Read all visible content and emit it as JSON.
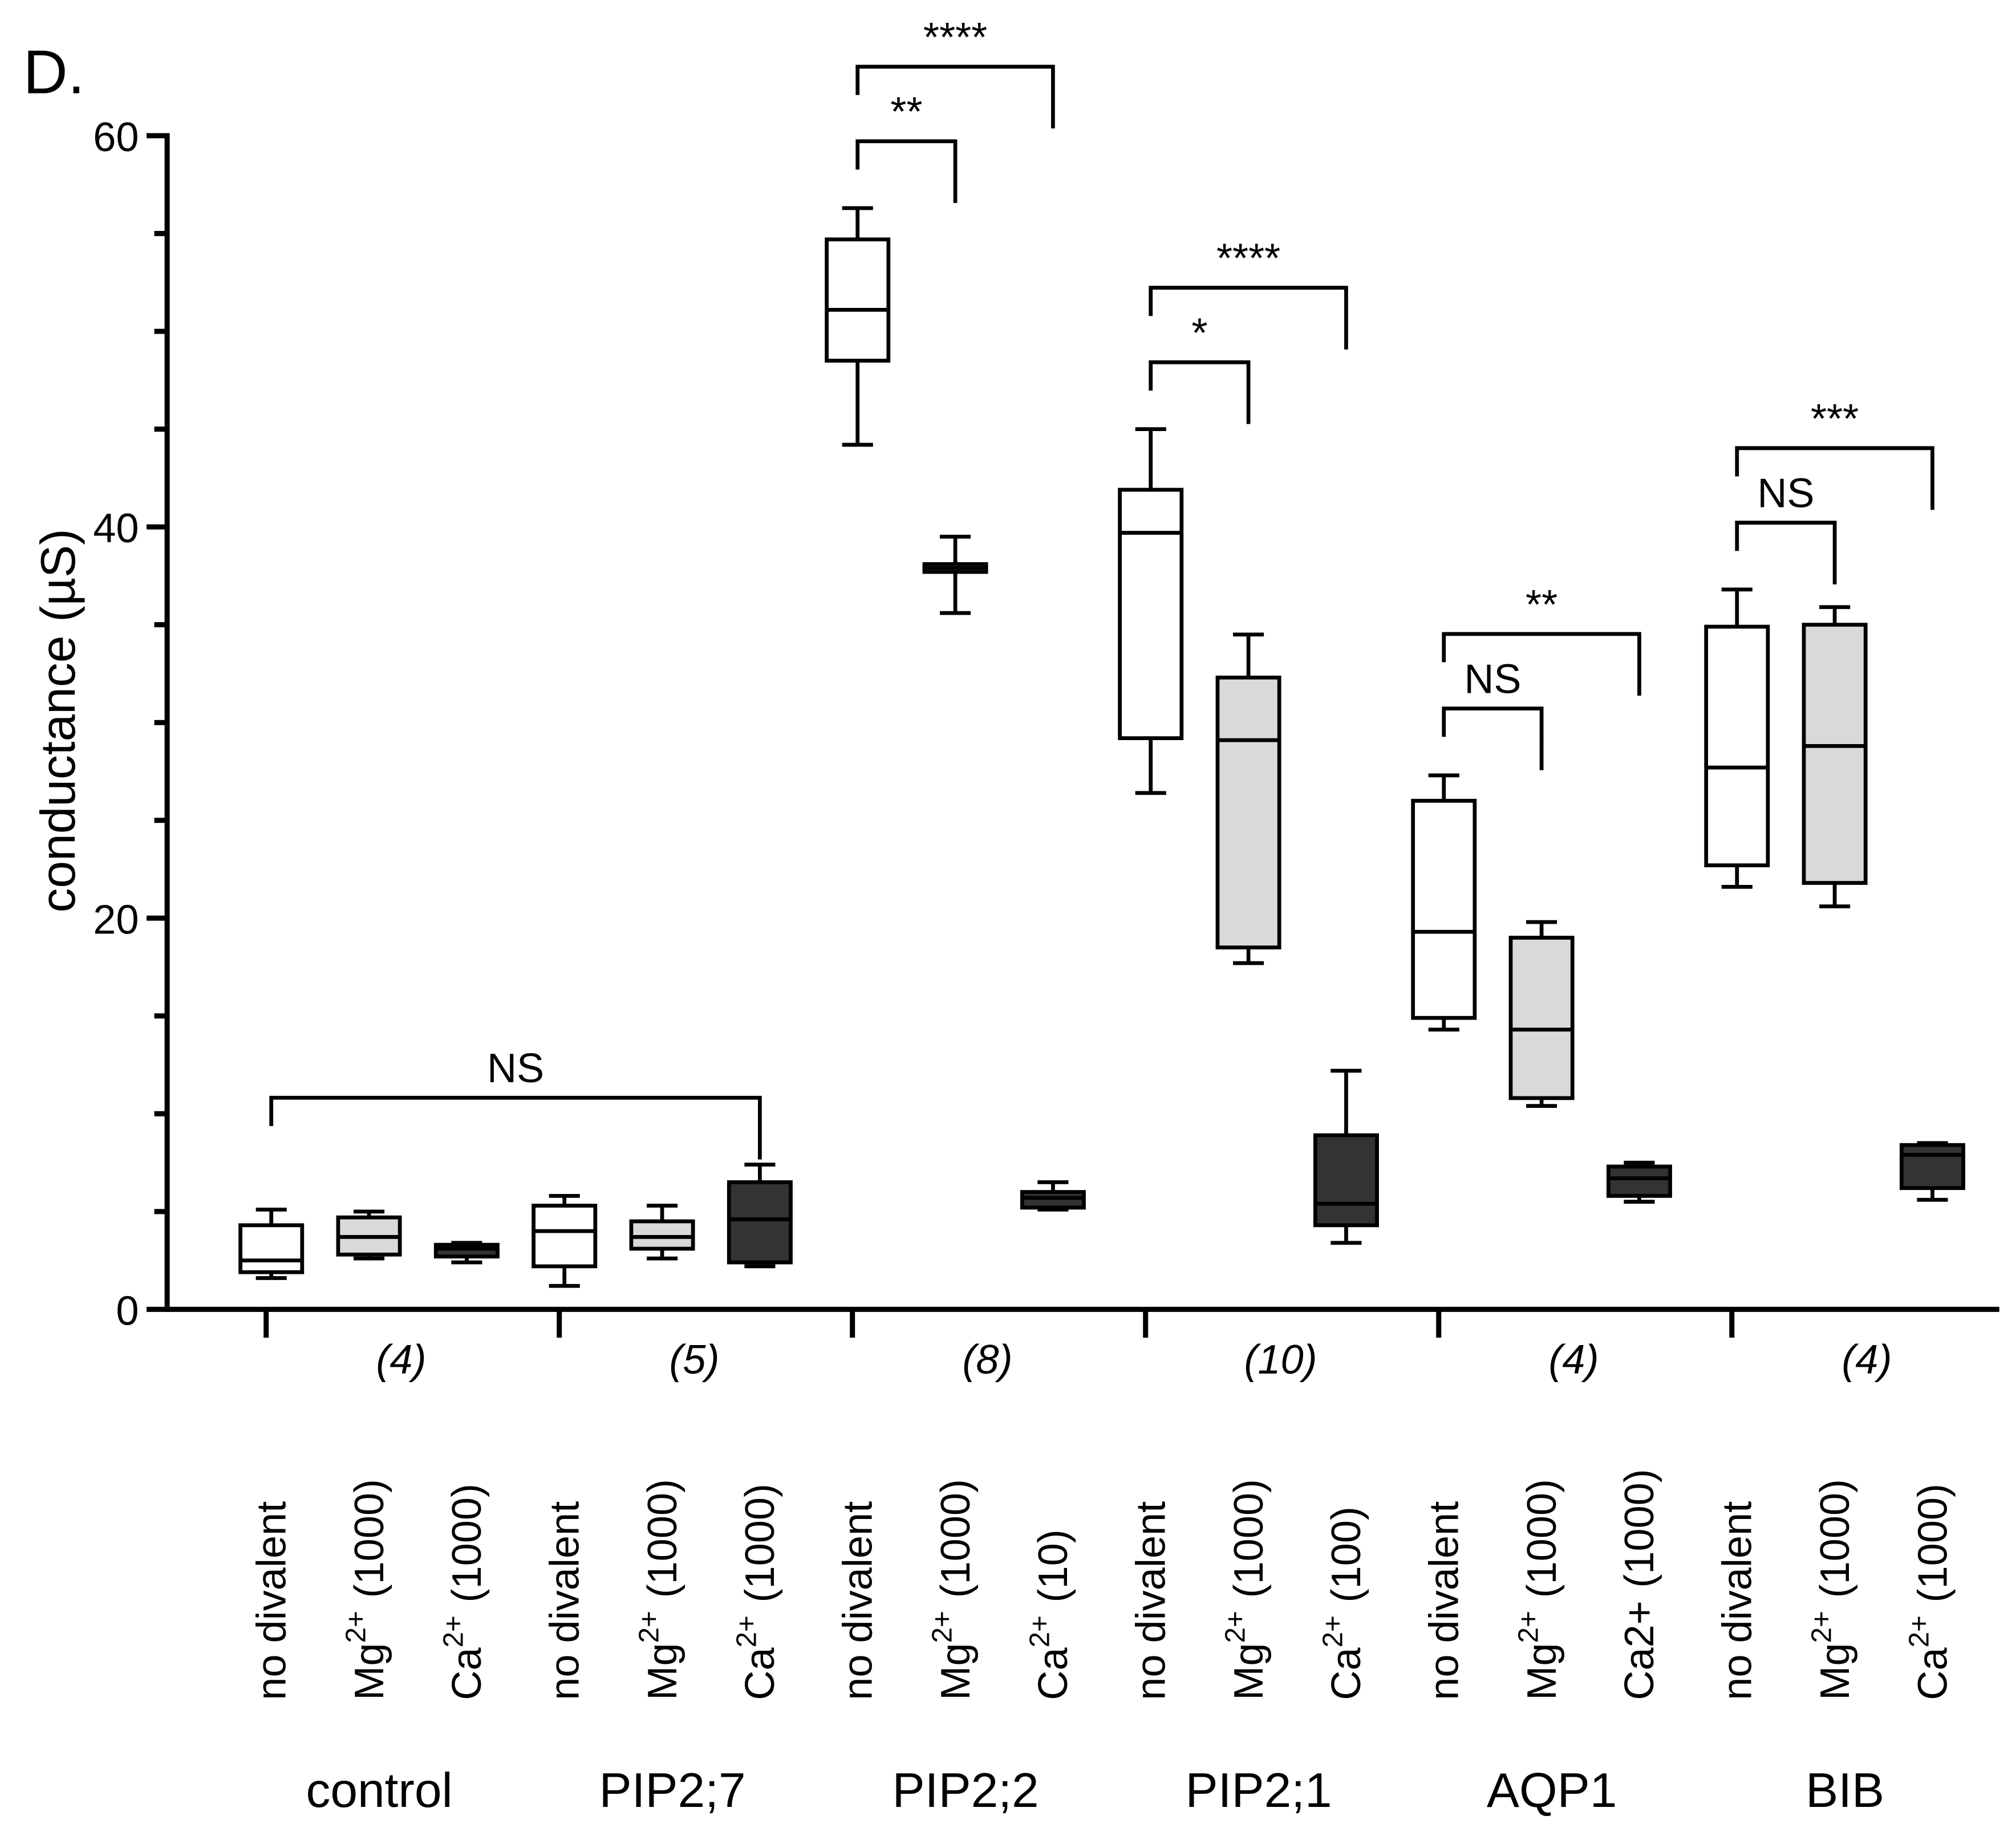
{
  "panel": "D.",
  "chart_data": {
    "type": "box",
    "ylabel": "conductance (µS)",
    "ylim": [
      0,
      60
    ],
    "yticks": [
      0,
      20,
      40,
      60
    ],
    "yminorticks": [
      5,
      10,
      15,
      25,
      30,
      35,
      45,
      50,
      55
    ],
    "box_colors": [
      "#ffffff",
      "#d9d9d9",
      "#333333"
    ],
    "groups": [
      {
        "name": "control",
        "n": "(4)",
        "boxes": [
          {
            "label": "no divalent",
            "min": 1.6,
            "q1": 1.9,
            "median": 2.5,
            "q3": 4.3,
            "max": 5.1
          },
          {
            "label": {
              "ion": "Mg",
              "charge": "2+",
              "conc": "(1000)"
            },
            "min": 2.6,
            "q1": 2.8,
            "median": 3.7,
            "q3": 4.7,
            "max": 5.0
          },
          {
            "label": {
              "ion": "Ca",
              "charge": "2+",
              "conc": "(1000)"
            },
            "min": 2.4,
            "q1": 2.7,
            "median": 3.1,
            "q3": 3.3,
            "max": 3.4
          }
        ]
      },
      {
        "name": "PIP2;7",
        "n": "(5)",
        "boxes": [
          {
            "label": "no divalent",
            "min": 1.2,
            "q1": 2.2,
            "median": 4.0,
            "q3": 5.3,
            "max": 5.8
          },
          {
            "label": {
              "ion": "Mg",
              "charge": "2+",
              "conc": "(1000)"
            },
            "min": 2.6,
            "q1": 3.1,
            "median": 3.7,
            "q3": 4.5,
            "max": 5.3
          },
          {
            "label": {
              "ion": "Ca",
              "charge": "2+",
              "conc": "(1000)"
            },
            "min": 2.2,
            "q1": 2.4,
            "median": 4.6,
            "q3": 6.5,
            "max": 7.4
          }
        ]
      },
      {
        "name": "PIP2;2",
        "n": "(8)",
        "boxes": [
          {
            "label": "no divalent",
            "min": 44.2,
            "q1": 48.5,
            "median": 51.1,
            "q3": 54.7,
            "max": 56.3
          },
          {
            "label": {
              "ion": "Mg",
              "charge": "2+",
              "conc": "(1000)"
            },
            "min": 35.6,
            "q1": 37.7,
            "median": 37.9,
            "q3": 38.1,
            "max": 39.5
          },
          {
            "label": {
              "ion": "Ca",
              "charge": "2+",
              "conc": "(10)"
            },
            "min": 5.1,
            "q1": 5.2,
            "median": 5.7,
            "q3": 6.0,
            "max": 6.5
          }
        ]
      },
      {
        "name": "PIP2;1",
        "n": "(10)",
        "boxes": [
          {
            "label": "no divalent",
            "min": 26.4,
            "q1": 29.2,
            "median": 39.7,
            "q3": 41.9,
            "max": 45.0
          },
          {
            "label": {
              "ion": "Mg",
              "charge": "2+",
              "conc": "(1000)"
            },
            "min": 17.7,
            "q1": 18.5,
            "median": 29.1,
            "q3": 32.3,
            "max": 34.5
          },
          {
            "label": {
              "ion": "Ca",
              "charge": "2+",
              "conc": "(100)"
            },
            "min": 3.4,
            "q1": 4.3,
            "median": 5.4,
            "q3": 8.9,
            "max": 12.2
          }
        ]
      },
      {
        "name": "AQP1",
        "n": "(4)",
        "boxes": [
          {
            "label": "no divalent",
            "min": 14.3,
            "q1": 14.9,
            "median": 19.3,
            "q3": 26.0,
            "max": 27.3
          },
          {
            "label": {
              "ion": "Mg",
              "charge": "2+",
              "conc": "(1000)"
            },
            "min": 10.4,
            "q1": 10.8,
            "median": 14.3,
            "q3": 19.0,
            "max": 19.8
          },
          {
            "label": {
              "ion": "Ca2+",
              "conc": "(1000)"
            },
            "min": 5.5,
            "q1": 5.8,
            "median": 6.7,
            "q3": 7.3,
            "max": 7.5
          }
        ]
      },
      {
        "name": "BIB",
        "n": "(4)",
        "boxes": [
          {
            "label": "no divalent",
            "min": 21.6,
            "q1": 22.7,
            "median": 27.7,
            "q3": 34.9,
            "max": 36.8
          },
          {
            "label": {
              "ion": "Mg",
              "charge": "2+",
              "conc": "(1000)"
            },
            "min": 20.6,
            "q1": 21.8,
            "median": 28.8,
            "q3": 35.0,
            "max": 35.9
          },
          {
            "label": {
              "ion": "Ca",
              "charge": "2+",
              "conc": "(1000)"
            },
            "min": 5.6,
            "q1": 6.2,
            "median": 7.9,
            "q3": 8.4,
            "max": 8.5
          }
        ]
      }
    ],
    "annotations": [
      {
        "text": "NS",
        "from": [
          0,
          0
        ],
        "to": [
          1,
          2
        ]
      },
      {
        "text": "**",
        "from": [
          2,
          0
        ],
        "to": [
          2,
          1
        ]
      },
      {
        "text": "****",
        "from": [
          2,
          0
        ],
        "to": [
          2,
          2
        ]
      },
      {
        "text": "*",
        "from": [
          3,
          0
        ],
        "to": [
          3,
          1
        ]
      },
      {
        "text": "****",
        "from": [
          3,
          0
        ],
        "to": [
          3,
          2
        ]
      },
      {
        "text": "NS",
        "from": [
          4,
          0
        ],
        "to": [
          4,
          1
        ]
      },
      {
        "text": "**",
        "from": [
          4,
          0
        ],
        "to": [
          4,
          2
        ]
      },
      {
        "text": "NS",
        "from": [
          5,
          0
        ],
        "to": [
          5,
          1
        ]
      },
      {
        "text": "***",
        "from": [
          5,
          0
        ],
        "to": [
          5,
          2
        ]
      }
    ]
  }
}
